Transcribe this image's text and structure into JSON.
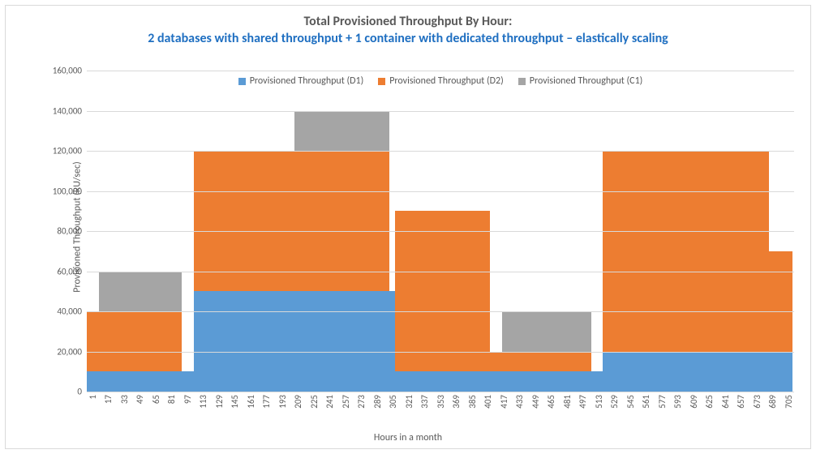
{
  "chart": {
    "type": "stacked-bar",
    "title_line1": "Total Provisioned Throughput By Hour:",
    "title_line2": "2 databases with shared throughput + 1 container with dedicated throughput – elastically scaling",
    "title_fontsize": 16,
    "title_color_1": "#595959",
    "title_color_2": "#1f6fc1",
    "ylabel": "Provisioned Throughput (RU/sec)",
    "xlabel": "Hours in a month",
    "axis_label_fontsize": 12,
    "tick_fontsize": 11,
    "legend_fontsize": 12,
    "ylim": [
      0,
      160000
    ],
    "ytick_step": 20000,
    "yticks": [
      "0",
      "20,000",
      "40,000",
      "60,000",
      "80,000",
      "100,000",
      "120,000",
      "140,000",
      "160,000"
    ],
    "x_tick_step": 16,
    "x_start": 1,
    "x_count": 714,
    "background_color": "#ffffff",
    "grid_color": "#d9d9d9",
    "axis_color": "#d9d9d9",
    "series": [
      {
        "name": "Provisioned Throughput (D1)",
        "color": "#5b9bd5"
      },
      {
        "name": "Provisioned Throughput (D2)",
        "color": "#ed7d31"
      },
      {
        "name": "Provisioned Throughput (C1)",
        "color": "#a5a5a5"
      }
    ],
    "segments": [
      {
        "from": 1,
        "to": 12,
        "d1": 10000,
        "d2": 30000,
        "c1": 0
      },
      {
        "from": 13,
        "to": 96,
        "d1": 10000,
        "d2": 30000,
        "c1": 20000
      },
      {
        "from": 97,
        "to": 108,
        "d1": 10000,
        "d2": 0,
        "c1": 0
      },
      {
        "from": 109,
        "to": 210,
        "d1": 50000,
        "d2": 70000,
        "c1": 0
      },
      {
        "from": 211,
        "to": 306,
        "d1": 50000,
        "d2": 70000,
        "c1": 20000
      },
      {
        "from": 307,
        "to": 312,
        "d1": 50000,
        "d2": 0,
        "c1": 0
      },
      {
        "from": 313,
        "to": 408,
        "d1": 10000,
        "d2": 80000,
        "c1": 0
      },
      {
        "from": 409,
        "to": 420,
        "d1": 10000,
        "d2": 10000,
        "c1": 0
      },
      {
        "from": 421,
        "to": 510,
        "d1": 10000,
        "d2": 10000,
        "c1": 20000
      },
      {
        "from": 511,
        "to": 522,
        "d1": 10000,
        "d2": 0,
        "c1": 0
      },
      {
        "from": 523,
        "to": 690,
        "d1": 20000,
        "d2": 100000,
        "c1": 0
      },
      {
        "from": 691,
        "to": 714,
        "d1": 20000,
        "d2": 50000,
        "c1": 0
      }
    ]
  }
}
